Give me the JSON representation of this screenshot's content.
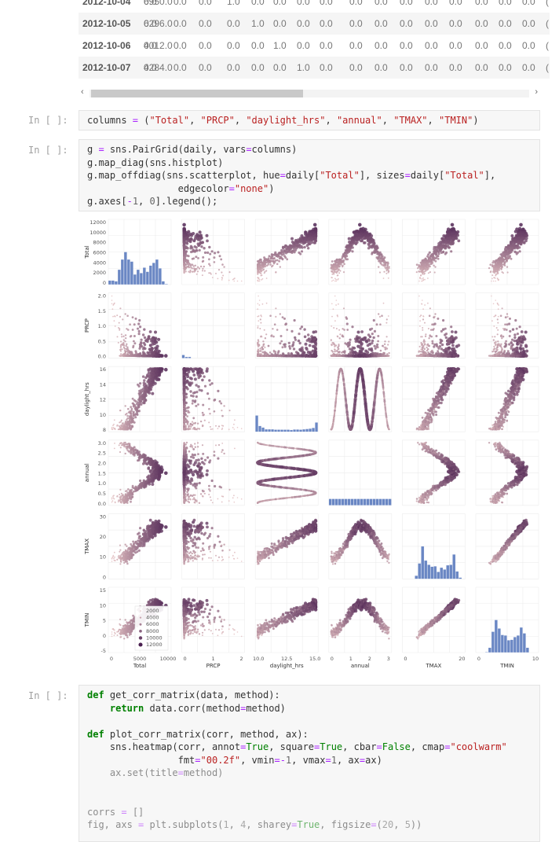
{
  "dataframe": {
    "rows": [
      {
        "date": "2012-10-04",
        "total": "6950.0",
        "vals": [
          "0.0",
          "0.0",
          "0.0",
          "1.0",
          "0.0",
          "0.0",
          "0.0",
          "0.0",
          "0.0",
          "0.0",
          "0.0",
          "0.0",
          "0.0",
          "0.0",
          "0.0",
          "0.0",
          "("
        ]
      },
      {
        "date": "2012-10-05",
        "total": "6296.0",
        "vals": [
          "0.0",
          "0.0",
          "0.0",
          "0.0",
          "1.0",
          "0.0",
          "0.0",
          "0.0",
          "0.0",
          "0.0",
          "0.0",
          "0.0",
          "0.0",
          "0.0",
          "0.0",
          "0.0",
          "("
        ]
      },
      {
        "date": "2012-10-06",
        "total": "4012.0",
        "vals": [
          "0.0",
          "0.0",
          "0.0",
          "0.0",
          "0.0",
          "1.0",
          "0.0",
          "0.0",
          "0.0",
          "0.0",
          "0.0",
          "0.0",
          "0.0",
          "0.0",
          "0.0",
          "0.0",
          "("
        ]
      },
      {
        "date": "2012-10-07",
        "total": "4284.0",
        "vals": [
          "0.0",
          "0.0",
          "0.0",
          "0.0",
          "0.0",
          "0.0",
          "1.0",
          "0.0",
          "0.0",
          "0.0",
          "0.0",
          "0.0",
          "0.0",
          "0.0",
          "0.0",
          "0.0",
          "("
        ]
      }
    ],
    "scroll_left": "‹",
    "scroll_right": "›"
  },
  "cells": [
    {
      "prompt": "In [ ]:",
      "lines": [
        [
          [
            "n",
            "columns "
          ],
          [
            "op",
            "="
          ],
          [
            "n",
            " ("
          ],
          [
            "s",
            "\"Total\""
          ],
          [
            "n",
            ", "
          ],
          [
            "s",
            "\"PRCP\""
          ],
          [
            "n",
            ", "
          ],
          [
            "s",
            "\"daylight_hrs\""
          ],
          [
            "n",
            ", "
          ],
          [
            "s",
            "\"annual\""
          ],
          [
            "n",
            ", "
          ],
          [
            "s",
            "\"TMAX\""
          ],
          [
            "n",
            ", "
          ],
          [
            "s",
            "\"TMIN\""
          ],
          [
            "n",
            ")"
          ]
        ]
      ]
    },
    {
      "prompt": "In [ ]:",
      "lines": [
        [
          [
            "n",
            "g "
          ],
          [
            "op",
            "="
          ],
          [
            "n",
            " sns.PairGrid(daily, vars"
          ],
          [
            "op",
            "="
          ],
          [
            "n",
            "columns)"
          ]
        ],
        [
          [
            "n",
            "g.map_diag(sns.histplot)"
          ]
        ],
        [
          [
            "n",
            "g.map_offdiag(sns.scatterplot, hue"
          ],
          [
            "op",
            "="
          ],
          [
            "n",
            "daily["
          ],
          [
            "s",
            "\"Total\""
          ],
          [
            "n",
            "], sizes"
          ],
          [
            "op",
            "="
          ],
          [
            "n",
            "daily["
          ],
          [
            "s",
            "\"Total\""
          ],
          [
            "n",
            "],"
          ]
        ],
        [
          [
            "n",
            "                edgecolor"
          ],
          [
            "op",
            "="
          ],
          [
            "s",
            "\"none\""
          ],
          [
            "n",
            ")"
          ]
        ],
        [
          [
            "n",
            "g.axes["
          ],
          [
            "op",
            "-"
          ],
          [
            "num",
            "1"
          ],
          [
            "n",
            ", "
          ],
          [
            "num",
            "0"
          ],
          [
            "n",
            "].legend();"
          ]
        ]
      ]
    },
    {
      "prompt": "In [ ]:",
      "lines": [
        [
          [
            "k",
            "def"
          ],
          [
            "n",
            " get_corr_matrix(data, method):"
          ]
        ],
        [
          [
            "n",
            "    "
          ],
          [
            "k",
            "return"
          ],
          [
            "n",
            " data.corr(method"
          ],
          [
            "op",
            "="
          ],
          [
            "n",
            "method)"
          ]
        ],
        [
          [
            "n",
            ""
          ]
        ],
        [
          [
            "k",
            "def"
          ],
          [
            "n",
            " plot_corr_matrix(corr, method, ax):"
          ]
        ],
        [
          [
            "n",
            "    sns.heatmap(corr, annot"
          ],
          [
            "op",
            "="
          ],
          [
            "nb",
            "True"
          ],
          [
            "n",
            ", square"
          ],
          [
            "op",
            "="
          ],
          [
            "nb",
            "True"
          ],
          [
            "n",
            ", cbar"
          ],
          [
            "op",
            "="
          ],
          [
            "nb",
            "False"
          ],
          [
            "n",
            ", cmap"
          ],
          [
            "op",
            "="
          ],
          [
            "s",
            "\"coolwarm\""
          ]
        ],
        [
          [
            "n",
            "                fmt"
          ],
          [
            "op",
            "="
          ],
          [
            "s",
            "\"00.2f\""
          ],
          [
            "n",
            ", vmin"
          ],
          [
            "op",
            "="
          ],
          [
            "op",
            "-"
          ],
          [
            "num",
            "1"
          ],
          [
            "n",
            ", vmax"
          ],
          [
            "op",
            "="
          ],
          [
            "num",
            "1"
          ],
          [
            "n",
            ", ax"
          ],
          [
            "op",
            "="
          ],
          [
            "n",
            "ax)"
          ]
        ],
        [
          [
            "n",
            "    ax.set(title"
          ],
          [
            "op",
            "="
          ],
          [
            "n",
            "method)"
          ]
        ],
        [
          [
            "n",
            ""
          ]
        ],
        [
          [
            "n",
            ""
          ]
        ],
        [
          [
            "n",
            "corrs "
          ],
          [
            "op",
            "="
          ],
          [
            "n",
            " []"
          ]
        ],
        [
          [
            "n",
            "fig, axs "
          ],
          [
            "op",
            "="
          ],
          [
            "n",
            " plt.subplots("
          ],
          [
            "num",
            "1"
          ],
          [
            "n",
            ", "
          ],
          [
            "num",
            "4"
          ],
          [
            "n",
            ", sharey"
          ],
          [
            "op",
            "="
          ],
          [
            "nb",
            "True"
          ],
          [
            "n",
            ", figsize"
          ],
          [
            "op",
            "="
          ],
          [
            "n",
            "("
          ],
          [
            "num",
            "20"
          ],
          [
            "n",
            ", "
          ],
          [
            "num",
            "5"
          ],
          [
            "n",
            "))"
          ]
        ]
      ]
    }
  ],
  "chart_data": {
    "type": "scatter",
    "variables": [
      "Total",
      "PRCP",
      "daylight_hrs",
      "annual",
      "TMAX",
      "TMIN"
    ],
    "y_ticks": {
      "Total": [
        "0",
        "2000",
        "4000",
        "6000",
        "8000",
        "10000",
        "12000"
      ],
      "PRCP": [
        "0.0",
        "0.5",
        "1.0",
        "1.5",
        "2.0"
      ],
      "daylight_hrs": [
        "8",
        "10",
        "12",
        "14",
        "16"
      ],
      "annual": [
        "0.0",
        "0.5",
        "1.0",
        "1.5",
        "2.0",
        "2.5",
        "3.0"
      ],
      "TMAX": [
        "0",
        "10",
        "20",
        "30"
      ],
      "TMIN": [
        "-5",
        "0",
        "5",
        "10",
        "15"
      ]
    },
    "x_ticks": {
      "Total": [
        "0",
        "5000",
        "10000"
      ],
      "PRCP": [
        "0",
        "1",
        "2"
      ],
      "daylight_hrs": [
        "10.0",
        "12.5",
        "15.0"
      ],
      "annual": [
        "0",
        "1",
        "2",
        "3"
      ],
      "TMAX": [
        "0",
        "20"
      ],
      "TMIN": [
        "0",
        "10"
      ]
    },
    "legend": {
      "entries": [
        "2000",
        "4000",
        "6000",
        "8000",
        "10000",
        "12000"
      ],
      "placement": "lower-right of bottom-left panel"
    },
    "colors": {
      "hist": "#6a87c4",
      "low": "#e8c5c5",
      "high": "#4a2050"
    }
  }
}
